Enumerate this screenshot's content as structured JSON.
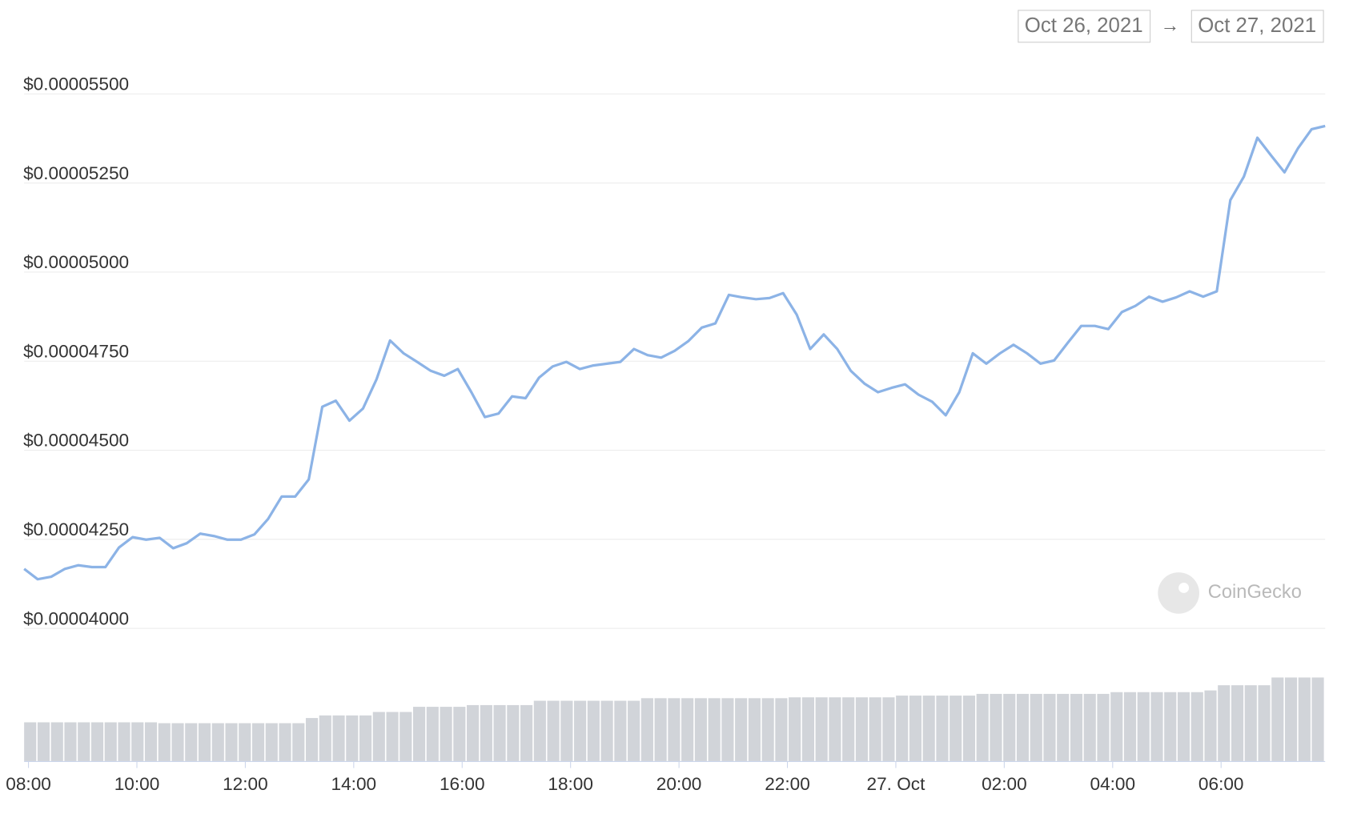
{
  "chart_data": {
    "type": "line",
    "range_start": "Oct 26, 2021",
    "range_arrow": "→",
    "range_end": "Oct 27, 2021",
    "watermark": "CoinGecko",
    "color": "#8cb3e6",
    "x": [
      7.92,
      8.17,
      8.42,
      8.67,
      8.92,
      9.17,
      9.42,
      9.67,
      9.92,
      10.17,
      10.42,
      10.67,
      10.92,
      11.17,
      11.42,
      11.67,
      11.92,
      12.17,
      12.42,
      12.67,
      12.92,
      13.17,
      13.42,
      13.67,
      13.92,
      14.17,
      14.42,
      14.67,
      14.92,
      15.17,
      15.42,
      15.67,
      15.92,
      16.17,
      16.42,
      16.67,
      16.92,
      17.17,
      17.42,
      17.67,
      17.92,
      18.17,
      18.42,
      18.67,
      18.92,
      19.17,
      19.42,
      19.67,
      19.92,
      20.17,
      20.42,
      20.67,
      20.92,
      21.17,
      21.42,
      21.67,
      21.92,
      22.17,
      22.42,
      22.67,
      22.92,
      23.17,
      23.42,
      23.67,
      23.92,
      24.17,
      24.42,
      24.67,
      24.92,
      25.17,
      25.42,
      25.67,
      25.92,
      26.17,
      26.42,
      26.67,
      26.92,
      27.17,
      27.42,
      27.67,
      27.92,
      28.17,
      28.42,
      28.67,
      28.92,
      29.17,
      29.42,
      29.67,
      29.92,
      30.17,
      30.42,
      30.67,
      30.92,
      31.17,
      31.42,
      31.67,
      31.92
    ],
    "values": [
      4.167e-05,
      4.138e-05,
      4.145e-05,
      4.167e-05,
      4.177e-05,
      4.172e-05,
      4.172e-05,
      4.227e-05,
      4.256e-05,
      4.249e-05,
      4.254e-05,
      4.225e-05,
      4.239e-05,
      4.266e-05,
      4.259e-05,
      4.249e-05,
      4.249e-05,
      4.264e-05,
      4.307e-05,
      4.37e-05,
      4.37e-05,
      4.418e-05,
      4.622e-05,
      4.639e-05,
      4.583e-05,
      4.617e-05,
      4.699e-05,
      4.808e-05,
      4.772e-05,
      4.748e-05,
      4.723e-05,
      4.709e-05,
      4.728e-05,
      4.663e-05,
      4.593e-05,
      4.603e-05,
      4.651e-05,
      4.646e-05,
      4.704e-05,
      4.735e-05,
      4.748e-05,
      4.728e-05,
      4.738e-05,
      4.743e-05,
      4.748e-05,
      4.784e-05,
      4.767e-05,
      4.76e-05,
      4.779e-05,
      4.806e-05,
      4.844e-05,
      4.856e-05,
      4.936e-05,
      4.929e-05,
      4.924e-05,
      4.927e-05,
      4.941e-05,
      4.881e-05,
      4.784e-05,
      4.825e-05,
      4.784e-05,
      4.723e-05,
      4.687e-05,
      4.663e-05,
      4.675e-05,
      4.685e-05,
      4.656e-05,
      4.636e-05,
      4.598e-05,
      4.663e-05,
      4.772e-05,
      4.743e-05,
      4.772e-05,
      4.796e-05,
      4.772e-05,
      4.743e-05,
      4.752e-05,
      4.801e-05,
      4.849e-05,
      4.849e-05,
      4.84e-05,
      4.888e-05,
      4.905e-05,
      4.931e-05,
      4.917e-05,
      4.929e-05,
      4.946e-05,
      4.931e-05,
      4.946e-05,
      5.202e-05,
      5.268e-05,
      5.377e-05,
      5.328e-05,
      5.28e-05,
      5.348e-05,
      5.401e-05,
      5.41e-05
    ],
    "volume": {
      "color": "#d1d4d9",
      "ylim": [
        0,
        100
      ],
      "values": [
        45,
        45,
        45,
        45,
        45,
        45,
        45,
        45,
        45,
        45,
        44,
        44,
        44,
        44,
        44,
        44,
        44,
        44,
        44,
        44,
        44,
        50,
        53,
        53,
        53,
        53,
        57,
        57,
        57,
        63,
        63,
        63,
        63,
        65,
        65,
        65,
        65,
        65,
        70,
        70,
        70,
        70,
        70,
        70,
        70,
        70,
        73,
        73,
        73,
        73,
        73,
        73,
        73,
        73,
        73,
        73,
        73,
        74,
        74,
        74,
        74,
        74,
        74,
        74,
        74,
        76,
        76,
        76,
        76,
        76,
        76,
        78,
        78,
        78,
        78,
        78,
        78,
        78,
        78,
        78,
        78,
        80,
        80,
        80,
        80,
        80,
        80,
        80,
        82,
        88,
        88,
        88,
        88,
        97,
        97,
        97,
        97
      ]
    },
    "xlim": [
      7.92,
      31.92
    ],
    "xticks": [
      {
        "value": 8,
        "label": "08:00"
      },
      {
        "value": 10,
        "label": "10:00"
      },
      {
        "value": 12,
        "label": "12:00"
      },
      {
        "value": 14,
        "label": "14:00"
      },
      {
        "value": 16,
        "label": "16:00"
      },
      {
        "value": 18,
        "label": "18:00"
      },
      {
        "value": 20,
        "label": "20:00"
      },
      {
        "value": 22,
        "label": "22:00"
      },
      {
        "value": 24,
        "label": "27. Oct"
      },
      {
        "value": 26,
        "label": "02:00"
      },
      {
        "value": 28,
        "label": "04:00"
      },
      {
        "value": 30,
        "label": "06:00"
      }
    ],
    "ylim": [
      4e-05,
      5.5e-05
    ],
    "yticks": [
      {
        "value": 4e-05,
        "label": "$0.00004000"
      },
      {
        "value": 4.25e-05,
        "label": "$0.00004250"
      },
      {
        "value": 4.5e-05,
        "label": "$0.00004500"
      },
      {
        "value": 4.75e-05,
        "label": "$0.00004750"
      },
      {
        "value": 5e-05,
        "label": "$0.00005000"
      },
      {
        "value": 5.25e-05,
        "label": "$0.00005250"
      },
      {
        "value": 5.5e-05,
        "label": "$0.00005500"
      }
    ],
    "grid": true
  }
}
